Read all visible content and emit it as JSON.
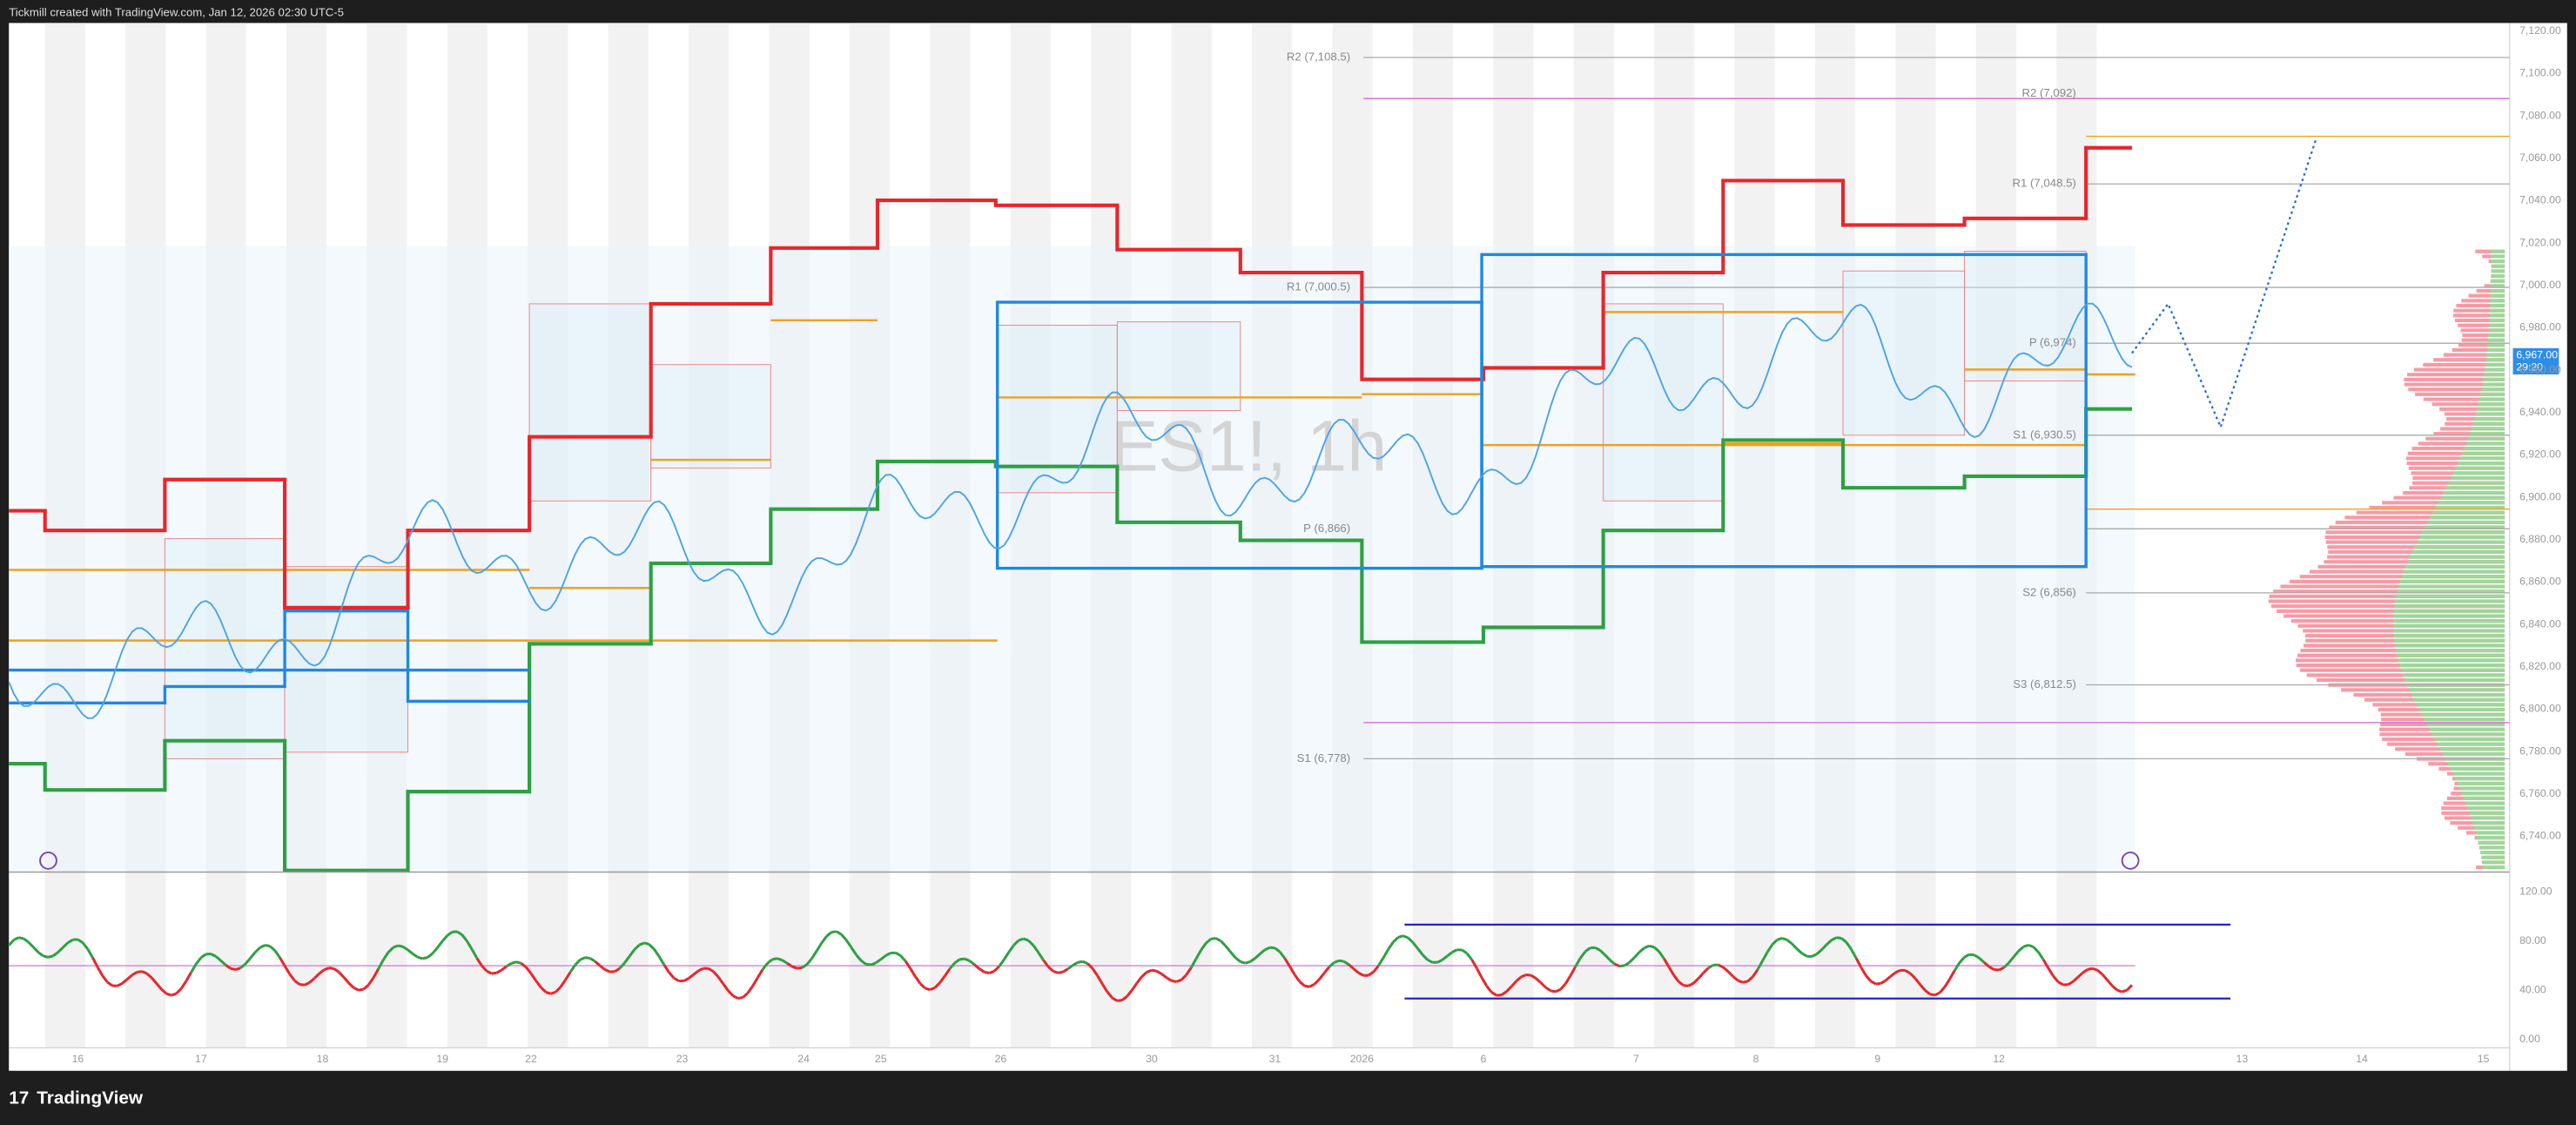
{
  "header": {
    "title": "Tickmill created with TradingView.com, Jan 12, 2026 02:30 UTC-5"
  },
  "footer": {
    "brand": "TradingView"
  },
  "watermark": "ES1!, 1h",
  "price_axis": [
    "7,120.00",
    "7,100.00",
    "7,080.00",
    "7,060.00",
    "7,040.00",
    "7,020.00",
    "7,000.00",
    "6,980.00",
    "6,960.00",
    "6,940.00",
    "6,920.00",
    "6,900.00",
    "6,880.00",
    "6,860.00",
    "6,840.00",
    "6,820.00",
    "6,800.00",
    "6,780.00",
    "6,760.00",
    "6,740.00"
  ],
  "price_tag": {
    "price": "6,967.00",
    "countdown": "29:20"
  },
  "pivots": [
    "R2 (7,108.5)",
    "R2 (7,092)",
    "R1 (7,048.5)",
    "R1 (7,000.5)",
    "P (6,974)",
    "S1 (6,930.5)",
    "P (6,866)",
    "S2 (6,856)",
    "S3 (6,812.5)",
    "S1 (6,778)"
  ],
  "rsi_axis": [
    "120.00",
    "80.00",
    "40.00",
    "0.00"
  ],
  "time_axis": [
    "16",
    "17",
    "18",
    "19",
    "22",
    "23",
    "24",
    "25",
    "26",
    "30",
    "31",
    "2026",
    "6",
    "7",
    "8",
    "9",
    "12",
    "13",
    "14",
    "15"
  ]
}
